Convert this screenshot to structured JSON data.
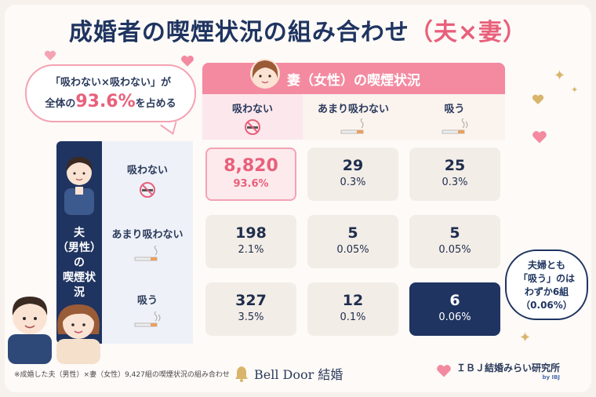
{
  "title": {
    "main": "成婚者の喫煙状況の組み合わせ",
    "accent": "（夫×妻）"
  },
  "callout": {
    "line1": "「吸わない×吸わない」が",
    "line2_prefix": "全体の",
    "line2_value": "93.6%",
    "line2_suffix": "を占める"
  },
  "wife_header": "妻（女性）の喫煙状況",
  "husband_header": "夫\n（男性）\nの\n喫煙状\n況",
  "columns": [
    "吸わない",
    "あまり吸わない",
    "吸う"
  ],
  "rows": [
    "吸わない",
    "あまり吸わない",
    "吸う"
  ],
  "note": {
    "line1": "夫婦とも",
    "line2": "「吸う」のは",
    "line3": "わずか6組",
    "line4": "（0.06%）"
  },
  "footer": {
    "source": "※成婚した夫（男性）×妻（女性）9,427組の喫煙状況の組み合わせ",
    "brand1": "Bell Door 結婚",
    "brand2": "ＩＢＪ結婚みらい研究所",
    "brand2_sub": "by IBJ"
  },
  "colors": {
    "navy": "#1f3460",
    "pink": "#f38aa0",
    "accent": "#e8607b"
  },
  "chart_data": {
    "type": "table",
    "title": "成婚者の喫煙状況の組み合わせ（夫×妻）",
    "row_axis": "夫（男性）の喫煙状況",
    "column_axis": "妻（女性）の喫煙状況",
    "columns": [
      "吸わない",
      "あまり吸わない",
      "吸う"
    ],
    "rows": [
      {
        "label": "吸わない",
        "counts": [
          "8,820",
          "29",
          "25"
        ],
        "percents": [
          "93.6%",
          "0.3%",
          "0.3%"
        ]
      },
      {
        "label": "あまり吸わない",
        "counts": [
          "198",
          "5",
          "5"
        ],
        "percents": [
          "2.1%",
          "0.05%",
          "0.05%"
        ]
      },
      {
        "label": "吸う",
        "counts": [
          "327",
          "12",
          "6"
        ],
        "percents": [
          "3.5%",
          "0.1%",
          "0.06%"
        ]
      }
    ],
    "highlight": [
      {
        "row": 0,
        "col": 0,
        "style": "pink"
      },
      {
        "row": 2,
        "col": 2,
        "style": "navy"
      }
    ]
  }
}
